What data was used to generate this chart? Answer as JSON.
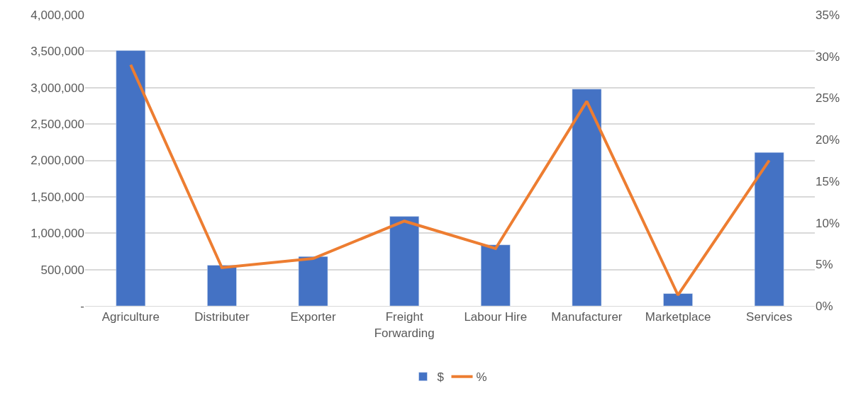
{
  "chart_data": {
    "type": "bar",
    "categories": [
      "Agriculture",
      "Distributer",
      "Exporter",
      "Freight Forwarding",
      "Labour Hire",
      "Manufacturer",
      "Marketplace",
      "Services"
    ],
    "series": [
      {
        "name": "$",
        "color": "#4472c4",
        "values": [
          3510000,
          560000,
          680000,
          1230000,
          840000,
          2980000,
          170000,
          2110000
        ]
      },
      {
        "name": "%",
        "type": "line",
        "axis": "y2",
        "color": "#ed7d31",
        "marker": "none",
        "line_style": "solid",
        "values": [
          29.0,
          4.6,
          5.7,
          10.2,
          6.9,
          24.6,
          1.3,
          17.5
        ]
      }
    ],
    "ylim": [
      0,
      4000000
    ],
    "yticks": [
      {
        "value": 0,
        "label": "-"
      },
      {
        "value": 500000,
        "label": "500,000"
      },
      {
        "value": 1000000,
        "label": "1,000,000"
      },
      {
        "value": 1500000,
        "label": "1,500,000"
      },
      {
        "value": 2000000,
        "label": "2,000,000"
      },
      {
        "value": 2500000,
        "label": "2,500,000"
      },
      {
        "value": 3000000,
        "label": "3,000,000"
      },
      {
        "value": 3500000,
        "label": "3,500,000"
      },
      {
        "value": 4000000,
        "label": "4,000,000"
      }
    ],
    "y2lim": [
      0,
      35
    ],
    "y2ticks": [
      {
        "value": 0,
        "label": "0%"
      },
      {
        "value": 5,
        "label": "5%"
      },
      {
        "value": 10,
        "label": "10%"
      },
      {
        "value": 15,
        "label": "15%"
      },
      {
        "value": 20,
        "label": "20%"
      },
      {
        "value": 25,
        "label": "25%"
      },
      {
        "value": 30,
        "label": "30%"
      },
      {
        "value": 35,
        "label": "35%"
      }
    ],
    "grid": "y",
    "legend": "bottom"
  }
}
